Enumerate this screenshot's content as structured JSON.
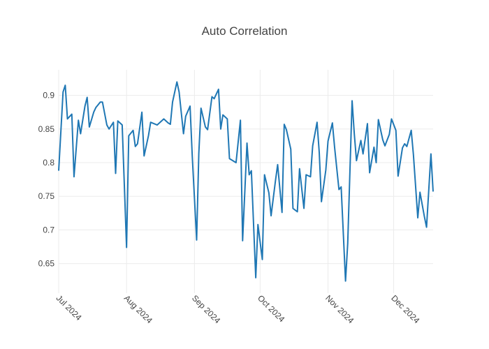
{
  "chart_data": {
    "type": "line",
    "title": "Auto Correlation",
    "x": [
      0,
      2,
      3,
      4,
      6,
      7,
      9,
      10,
      12,
      13,
      14,
      16,
      17,
      19,
      20,
      22,
      23,
      25,
      26,
      27,
      29,
      31,
      32,
      34,
      35,
      36,
      38,
      39,
      41,
      42,
      45,
      47,
      48,
      50,
      51,
      52,
      54,
      55,
      57,
      58,
      60,
      61,
      63,
      64,
      65,
      67,
      68,
      70,
      71,
      73,
      74,
      75,
      77,
      78,
      81,
      83,
      84,
      86,
      87,
      88,
      90,
      91,
      93,
      94,
      96,
      97,
      99,
      100,
      102,
      103,
      104,
      106,
      107,
      109,
      110,
      112,
      113,
      115,
      116,
      118,
      119,
      120,
      122,
      123,
      125,
      126,
      128,
      129,
      131,
      132,
      134,
      135,
      136,
      138,
      139,
      141,
      142,
      144,
      145,
      146,
      148,
      149,
      151,
      152,
      154,
      155,
      157,
      158,
      159,
      161,
      162,
      164,
      165,
      167,
      168,
      170,
      171
    ],
    "series": [
      {
        "name": "Auto Correlation",
        "color": "#1f77b4",
        "values": [
          0.788,
          0.905,
          0.915,
          0.865,
          0.872,
          0.779,
          0.863,
          0.843,
          0.884,
          0.897,
          0.853,
          0.875,
          0.882,
          0.89,
          0.89,
          0.856,
          0.85,
          0.86,
          0.784,
          0.862,
          0.856,
          0.674,
          0.84,
          0.848,
          0.824,
          0.828,
          0.875,
          0.81,
          0.84,
          0.86,
          0.856,
          0.862,
          0.865,
          0.859,
          0.857,
          0.89,
          0.92,
          0.905,
          0.843,
          0.869,
          0.884,
          0.81,
          0.685,
          0.814,
          0.881,
          0.853,
          0.849,
          0.898,
          0.895,
          0.909,
          0.85,
          0.871,
          0.865,
          0.806,
          0.8,
          0.863,
          0.684,
          0.829,
          0.782,
          0.788,
          0.629,
          0.708,
          0.656,
          0.782,
          0.755,
          0.721,
          0.773,
          0.797,
          0.726,
          0.857,
          0.849,
          0.82,
          0.732,
          0.727,
          0.791,
          0.732,
          0.782,
          0.779,
          0.825,
          0.86,
          0.815,
          0.742,
          0.789,
          0.832,
          0.859,
          0.823,
          0.76,
          0.764,
          0.624,
          0.68,
          0.892,
          0.843,
          0.803,
          0.833,
          0.813,
          0.858,
          0.785,
          0.823,
          0.8,
          0.864,
          0.834,
          0.825,
          0.842,
          0.865,
          0.848,
          0.78,
          0.822,
          0.828,
          0.824,
          0.848,
          0.812,
          0.718,
          0.756,
          0.72,
          0.704,
          0.813,
          0.757
        ]
      }
    ],
    "xlim": [
      0,
      171
    ],
    "xticks": [
      {
        "value": 0,
        "label": "Jul 2024"
      },
      {
        "value": 31,
        "label": "Aug 2024"
      },
      {
        "value": 62,
        "label": "Sep 2024"
      },
      {
        "value": 92,
        "label": "Oct 2024"
      },
      {
        "value": 123,
        "label": "Nov 2024"
      },
      {
        "value": 153,
        "label": "Dec 2024"
      }
    ],
    "ylim": [
      0.606,
      0.938
    ],
    "yticks": [
      0.65,
      0.7,
      0.75,
      0.8,
      0.85,
      0.9
    ],
    "grid": true
  }
}
